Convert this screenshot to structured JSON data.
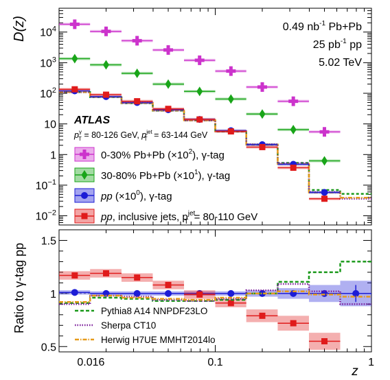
{
  "chart_data": [
    {
      "type": "scatter",
      "panel": "top",
      "y_scale": "log",
      "x_scale": "log",
      "xlim": [
        0.01,
        1.0
      ],
      "ylim": [
        0.005,
        60000
      ],
      "ylabel": "D(z)",
      "y_ticks": [
        {
          "v": 0.01,
          "b": "10",
          "e": "−2"
        },
        {
          "v": 0.1,
          "b": "10",
          "e": "−1"
        },
        {
          "v": 1,
          "b": "1",
          "e": ""
        },
        {
          "v": 10,
          "b": "10",
          "e": ""
        },
        {
          "v": 100,
          "b": "10",
          "e": "2"
        },
        {
          "v": 1000,
          "b": "10",
          "e": "3"
        },
        {
          "v": 10000,
          "b": "10",
          "e": "4"
        }
      ],
      "info": {
        "lumi_pbpb": {
          "a": "0.49 nb",
          "sup": "-1",
          "b": " Pb+Pb"
        },
        "lumi_pp": {
          "a": "25 pb",
          "sup": "-1",
          "b": " pp"
        },
        "energy": "5.02 TeV"
      },
      "atlas_label": "ATLAS",
      "cuts": {
        "p1": "p",
        "sup1": "γ",
        "sub1": "T",
        "r1": " = 80-126 GeV, ",
        "p2": "p",
        "sup2": "jet",
        "sub2": "T",
        "r2": " = 63-144 GeV"
      },
      "bins": [
        0.01,
        0.0158,
        0.0251,
        0.0398,
        0.0631,
        0.1,
        0.158,
        0.251,
        0.398,
        0.631,
        1.0
      ],
      "series": [
        {
          "name": "0-30% Pb+Pb (×10²), γ-tag",
          "legend": {
            "a": "0-30% Pb+Pb (×10",
            "sup": "2",
            "b": "), γ-tag"
          },
          "color": "#cc33cc",
          "marker": "cross",
          "x": [
            0.0126,
            0.02,
            0.0316,
            0.05,
            0.0794,
            0.126,
            0.2,
            0.316,
            0.5,
            0.794
          ],
          "y": [
            18000,
            10500,
            5200,
            2600,
            1200,
            530,
            160,
            55,
            5.5,
            null
          ]
        },
        {
          "name": "30-80% Pb+Pb (×10¹), γ-tag",
          "legend": {
            "a": "30-80% Pb+Pb (×10",
            "sup": "1",
            "b": "), γ-tag"
          },
          "color": "#19a519",
          "marker": "diamond",
          "x": [
            0.0126,
            0.02,
            0.0316,
            0.05,
            0.0794,
            0.126,
            0.2,
            0.316,
            0.5,
            0.794
          ],
          "y": [
            1350,
            850,
            450,
            200,
            115,
            65,
            21,
            6.5,
            0.62,
            null
          ]
        },
        {
          "name": "pp (×10⁰), γ-tag",
          "legend": {
            "a": "pp (×10",
            "sup": "0",
            "b": "), γ-tag"
          },
          "color": "#1c1cd6",
          "marker": "circle",
          "x": [
            0.0126,
            0.02,
            0.0316,
            0.05,
            0.0794,
            0.126,
            0.2,
            0.316,
            0.5,
            0.794
          ],
          "y": [
            120,
            78,
            50,
            29,
            14,
            6,
            2.1,
            0.48,
            0.058,
            null
          ]
        },
        {
          "name": "pp, inclusive jets",
          "legend": {
            "a": "pp, inclusive jets, p",
            "sup": "jet",
            "sub": "T",
            "b": " = 80-110 GeV"
          },
          "color": "#e01b1b",
          "marker": "square",
          "x": [
            0.0126,
            0.02,
            0.0316,
            0.05,
            0.0794,
            0.126,
            0.2,
            0.316,
            0.5,
            0.794
          ],
          "y": [
            135,
            90,
            55,
            31,
            14,
            5.7,
            1.75,
            0.37,
            0.036,
            null
          ]
        }
      ]
    },
    {
      "type": "scatter",
      "panel": "bottom",
      "x_scale": "log",
      "xlim": [
        0.01,
        1.0
      ],
      "ylim": [
        0.45,
        1.6
      ],
      "xlabel": "z",
      "ylabel": "Ratio to γ-tag pp",
      "x_ticks": [
        {
          "v": 0.016,
          "label": "0.016"
        },
        {
          "v": 0.1,
          "label": "0.1"
        },
        {
          "v": 1,
          "label": "1"
        }
      ],
      "y_ticks": [
        {
          "v": 0.5,
          "label": "0.5"
        },
        {
          "v": 1,
          "label": "1"
        },
        {
          "v": 1.5,
          "label": "1.5"
        }
      ],
      "series": [
        {
          "name": "pp γ-tag",
          "color": "#1c1cd6",
          "x": [
            0.0126,
            0.02,
            0.0316,
            0.05,
            0.0794,
            0.126,
            0.2,
            0.316,
            0.5,
            0.794
          ],
          "y": [
            1.01,
            1.0,
            1.0,
            1.0,
            1.0,
            1.0,
            1.0,
            1.0,
            1.0,
            1.0
          ]
        },
        {
          "name": "pp inclusive jets",
          "color": "#e01b1b",
          "x": [
            0.0126,
            0.02,
            0.0316,
            0.05,
            0.0794,
            0.126,
            0.2,
            0.316,
            0.5,
            0.794
          ],
          "y": [
            1.17,
            1.19,
            1.15,
            1.08,
            0.99,
            0.91,
            0.79,
            0.72,
            0.55,
            null
          ]
        }
      ],
      "models": [
        {
          "name": "Pythia8 A14 NNPDF23LO",
          "color": "#1a991a",
          "style": "dashed",
          "bins": [
            0.01,
            0.0158,
            0.0251,
            0.0398,
            0.0631,
            0.1,
            0.158,
            0.251,
            0.398,
            0.631,
            1.0
          ],
          "y": [
            0.91,
            0.96,
            0.95,
            0.93,
            0.93,
            0.94,
            1.0,
            1.11,
            1.2,
            1.3
          ]
        },
        {
          "name": "Sherpa CT10",
          "color": "#7a1a99",
          "style": "dotted",
          "bins": [
            0.01,
            0.0158,
            0.0251,
            0.0398,
            0.0631,
            0.1,
            0.158,
            0.251,
            0.398,
            0.631,
            1.0
          ],
          "y": [
            0.9,
            0.98,
            0.97,
            0.94,
            0.93,
            0.95,
            1.03,
            1.09,
            1.02,
            0.9
          ]
        },
        {
          "name": "Herwig H7UE MMHT2014lo",
          "color": "#e69a1a",
          "style": "dashdot",
          "bins": [
            0.01,
            0.0158,
            0.0251,
            0.0398,
            0.0631,
            0.1,
            0.158,
            0.251,
            0.398,
            0.631,
            1.0
          ],
          "y": [
            0.92,
            0.98,
            0.96,
            0.95,
            0.94,
            0.96,
            1.0,
            1.02,
            0.99,
            0.97
          ]
        }
      ]
    }
  ]
}
